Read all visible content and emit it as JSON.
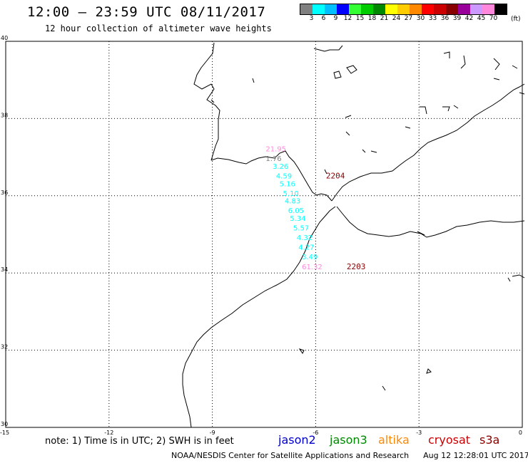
{
  "header": {
    "title": "12:00 – 23:59 UTC 08/11/2017",
    "subtitle": "12 hour collection of altimeter wave heights"
  },
  "color_scale": {
    "colors": [
      "#808080",
      "#00ffff",
      "#00bfff",
      "#0000ff",
      "#33ff33",
      "#00cc00",
      "#008800",
      "#ffff00",
      "#ffcc00",
      "#ff8800",
      "#ff0000",
      "#cc0000",
      "#880000",
      "#990099",
      "#cc99ff",
      "#ff88dd",
      "#000000"
    ],
    "ticks": [
      "3",
      "6",
      "9",
      "12",
      "15",
      "18",
      "21",
      "24",
      "27",
      "30",
      "33",
      "36",
      "39",
      "42",
      "45",
      "70"
    ],
    "unit": "(ft)"
  },
  "map": {
    "lat_ticks": [
      "40",
      "38",
      "36",
      "34",
      "32",
      "30"
    ],
    "lon_ticks": [
      "-15",
      "-12",
      "-9",
      "-6",
      "-3",
      "0"
    ],
    "passes": [
      {
        "id": "2204",
        "lon": -5.7,
        "lat": 36.45,
        "color": "#880000"
      },
      {
        "id": "2203",
        "lon": -5.1,
        "lat": 34.1,
        "color": "#880000"
      }
    ],
    "wave_heights": [
      {
        "value": "21.95",
        "lon": -7.45,
        "lat": 37.15,
        "color": "#ff88dd"
      },
      {
        "value": "1.76",
        "lon": -7.45,
        "lat": 36.9,
        "color": "#808080"
      },
      {
        "value": "3.26",
        "lon": -7.25,
        "lat": 36.7,
        "color": "#00ffff"
      },
      {
        "value": "4.59",
        "lon": -7.15,
        "lat": 36.45,
        "color": "#00ffff"
      },
      {
        "value": "5.16",
        "lon": -7.05,
        "lat": 36.25,
        "color": "#00ffff"
      },
      {
        "value": "5.10",
        "lon": -6.95,
        "lat": 36.0,
        "color": "#00ffff"
      },
      {
        "value": "4.83",
        "lon": -6.9,
        "lat": 35.8,
        "color": "#00ffff"
      },
      {
        "value": "6.05",
        "lon": -6.8,
        "lat": 35.55,
        "color": "#00ffff"
      },
      {
        "value": "5.34",
        "lon": -6.75,
        "lat": 35.35,
        "color": "#00ffff"
      },
      {
        "value": "5.57",
        "lon": -6.65,
        "lat": 35.1,
        "color": "#00ffff"
      },
      {
        "value": "4.32",
        "lon": -6.55,
        "lat": 34.85,
        "color": "#00ffff"
      },
      {
        "value": "4.27",
        "lon": -6.5,
        "lat": 34.6,
        "color": "#00ffff"
      },
      {
        "value": "3.49",
        "lon": -6.4,
        "lat": 34.35,
        "color": "#00ffff"
      },
      {
        "value": "61.32",
        "lon": -6.4,
        "lat": 34.1,
        "color": "#ff88dd"
      }
    ]
  },
  "note": "note: 1) Time is in UTC; 2) SWH is in feet",
  "legend": [
    {
      "label": "jason2",
      "color": "#0000cc"
    },
    {
      "label": "jason3",
      "color": "#008800"
    },
    {
      "label": "altika",
      "color": "#ff8800"
    },
    {
      "label": "cryosat",
      "color": "#cc0000"
    },
    {
      "label": "s3a",
      "color": "#880000"
    }
  ],
  "footer": {
    "credit": "NOAA/NESDIS Center for Satellite Applications and Research",
    "timestamp": "Aug 12 12:28:01 UTC 2017"
  }
}
